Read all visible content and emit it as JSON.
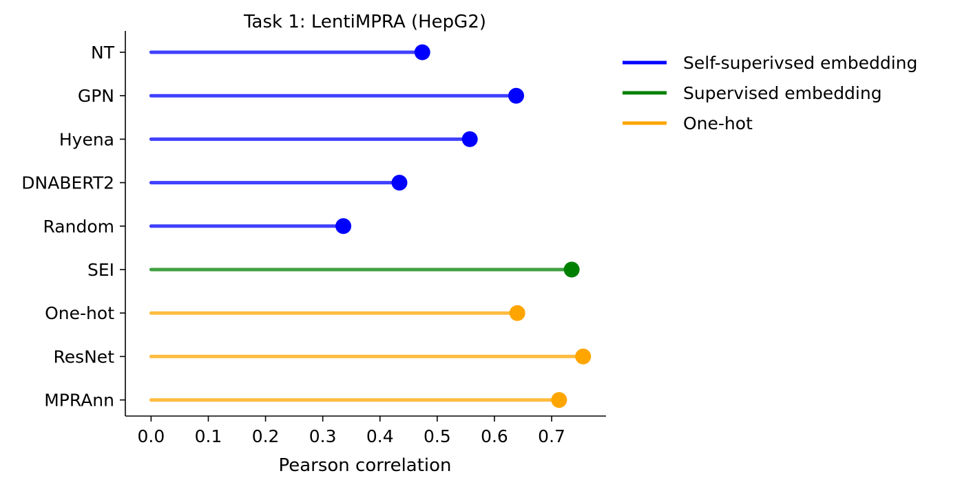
{
  "chart_data": {
    "type": "lollipop",
    "title": "Task 1: LentiMPRA (HepG2)",
    "xlabel": "Pearson correlation",
    "ylabel": "",
    "xlim": [
      -0.045,
      0.795
    ],
    "xticks": [
      "0.0",
      "0.1",
      "0.2",
      "0.3",
      "0.4",
      "0.5",
      "0.6",
      "0.7"
    ],
    "grid": false,
    "legend_position": "right",
    "categories": [
      "NT",
      "GPN",
      "Hyena",
      "DNABERT2",
      "Random",
      "SEI",
      "One-hot",
      "ResNet",
      "MPRAnn"
    ],
    "values": [
      0.474,
      0.638,
      0.557,
      0.434,
      0.336,
      0.735,
      0.64,
      0.755,
      0.713
    ],
    "groups": [
      "Self-superivsed embedding",
      "Self-superivsed embedding",
      "Self-superivsed embedding",
      "Self-superivsed embedding",
      "Self-superivsed embedding",
      "Supervised embedding",
      "One-hot",
      "One-hot",
      "One-hot"
    ],
    "legend": [
      {
        "name": "Self-superivsed embedding",
        "color": "#0000ff"
      },
      {
        "name": "Supervised embedding",
        "color": "#008000"
      },
      {
        "name": "One-hot",
        "color": "#ffa500"
      }
    ]
  }
}
